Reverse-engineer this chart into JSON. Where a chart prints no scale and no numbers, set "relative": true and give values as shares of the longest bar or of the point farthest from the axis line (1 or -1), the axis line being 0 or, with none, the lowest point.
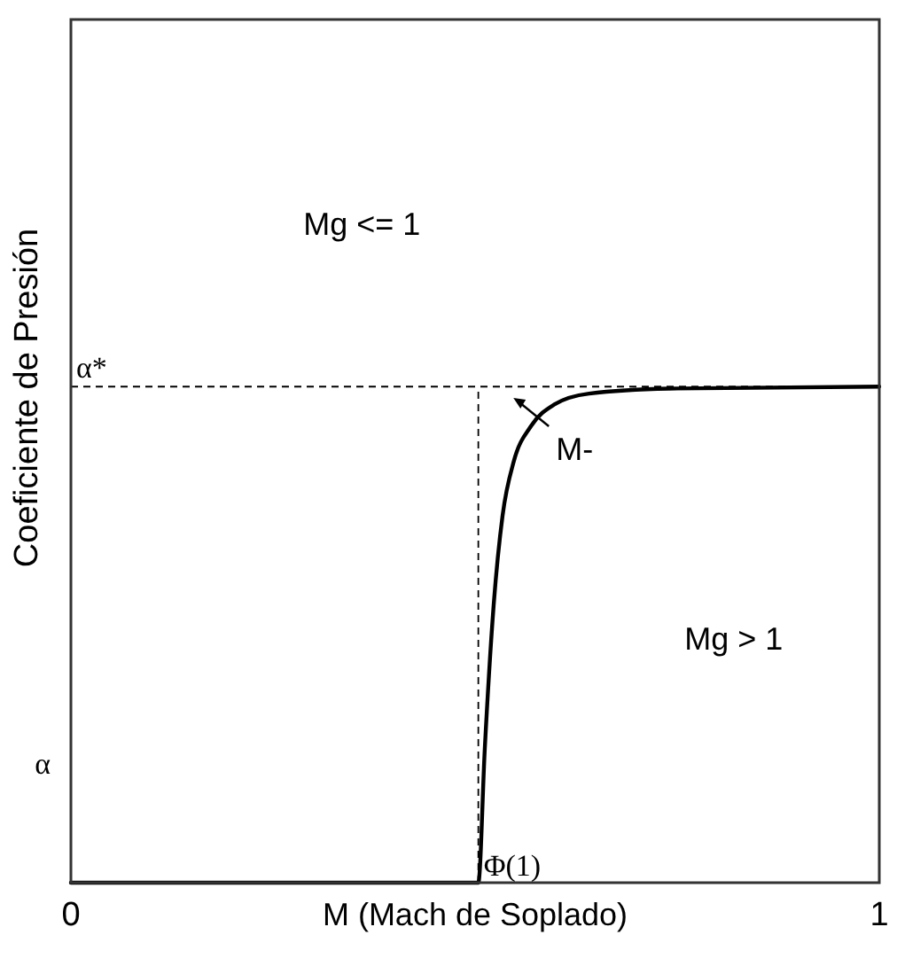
{
  "chart_data": {
    "type": "line",
    "xlabel": "M (Mach de Soplado)",
    "ylabel": "Coeficiente de Presión",
    "relative": true,
    "xlim": [
      0,
      1
    ],
    "xticks": [
      0,
      1
    ],
    "marker": "none",
    "line_style": "solid",
    "series": [
      {
        "color": "#000000",
        "x": [
          0,
          0.504,
          0.512,
          0.523,
          0.534,
          0.548,
          0.569,
          0.598,
          0.641,
          0.74,
          1
        ],
        "values": [
          0,
          0,
          0.27,
          0.56,
          0.74,
          0.85,
          0.92,
          0.964,
          0.986,
          0.996,
          1
        ]
      }
    ],
    "ref_lines": [
      {
        "axis": "y",
        "value": 1,
        "label": "α*",
        "line_style": "dashed",
        "color": "#000000"
      },
      {
        "axis": "x",
        "value": 0.504,
        "label": "Φ(1)",
        "line_style": "dashed",
        "color": "#000000"
      }
    ],
    "annotations": [
      "Mg <= 1",
      "Mg > 1",
      "M-",
      "α"
    ]
  }
}
